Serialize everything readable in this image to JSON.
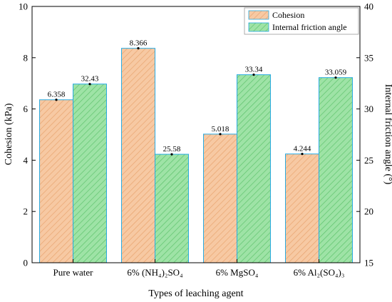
{
  "chart_data": {
    "type": "bar",
    "categories": [
      "Pure water",
      "6% (NH₄)₂SO₄",
      "6% MgSO₄",
      "6% Al₂(SO₄)₃"
    ],
    "series": [
      {
        "name": "Cohesion",
        "axis": "left",
        "values": [
          6.358,
          8.366,
          5.018,
          4.244
        ],
        "labels": [
          "6.358",
          "8.366",
          "5.018",
          "4.244"
        ],
        "fill": "#f7c9a3",
        "hatch": "#e8a46f"
      },
      {
        "name": "Internal friction angle",
        "axis": "right",
        "values": [
          32.43,
          25.58,
          33.34,
          33.059
        ],
        "labels": [
          "32.43",
          "25.58",
          "33.34",
          "33.059"
        ],
        "fill": "#9ee3a6",
        "hatch": "#5fc36d"
      }
    ],
    "xlabel": "Types of leaching agent",
    "ylabel": "Cohesion (kPa)",
    "ylabel_right": "Internal friction angle (°)",
    "ylim": [
      0,
      10
    ],
    "ylim_right": [
      15,
      40
    ],
    "yticks": [
      0,
      2,
      4,
      6,
      8,
      10
    ],
    "yticks_right": [
      15,
      20,
      25,
      30,
      35,
      40
    ],
    "grid": false,
    "legend_position": "top-right",
    "bar_edge_color": "#29abe2"
  }
}
